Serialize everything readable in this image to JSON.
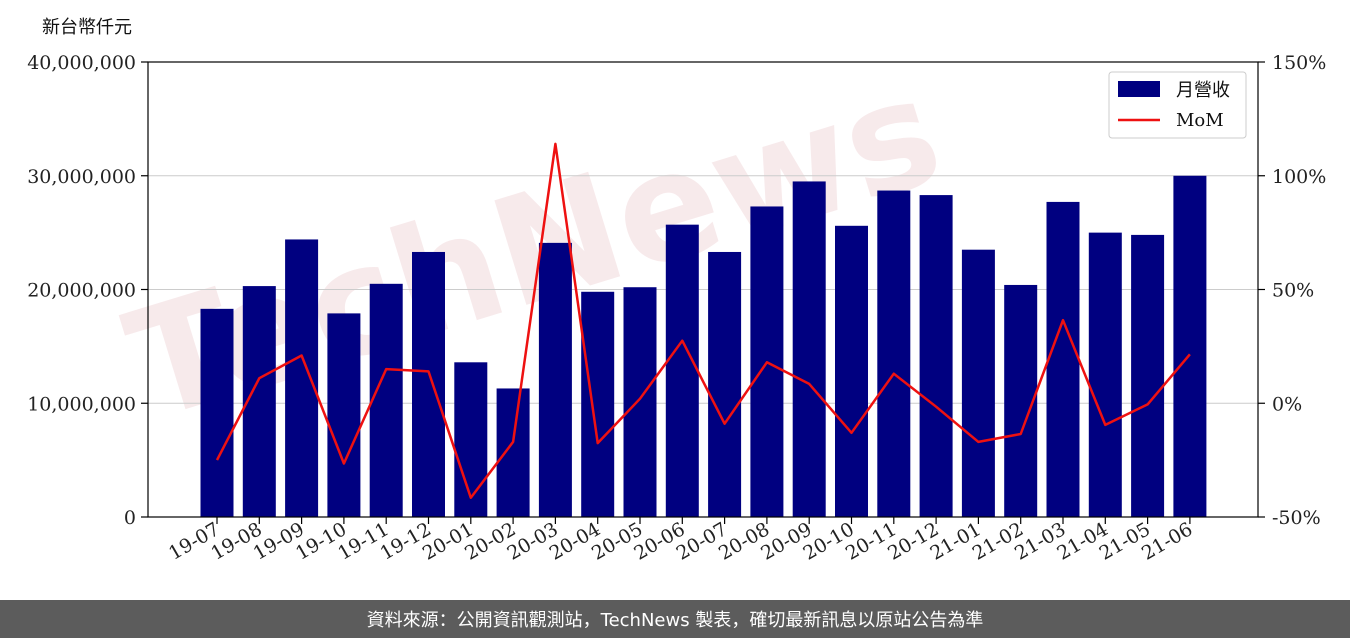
{
  "unit_label": "新台幣仟元",
  "footer_text": "資料來源：公開資訊觀測站，TechNews 製表，確切最新訊息以原站公告為準",
  "colors": {
    "bar": "#000080",
    "line": "#ee1111",
    "grid": "#cccccc",
    "footer_bg": "#5c5c5c"
  },
  "chart_data": {
    "type": "bar",
    "categories": [
      "19-07",
      "19-08",
      "19-09",
      "19-10",
      "19-11",
      "19-12",
      "20-01",
      "20-02",
      "20-03",
      "20-04",
      "20-05",
      "20-06",
      "20-07",
      "20-08",
      "20-09",
      "20-10",
      "20-11",
      "20-12",
      "21-01",
      "21-02",
      "21-03",
      "21-04",
      "21-05",
      "21-06"
    ],
    "series": [
      {
        "name": "月營收",
        "type": "bar",
        "axis": "left",
        "values": [
          18300000,
          20300000,
          24400000,
          17900000,
          20500000,
          23300000,
          13600000,
          11300000,
          24100000,
          19800000,
          20200000,
          25700000,
          23300000,
          27300000,
          29500000,
          25600000,
          28700000,
          28300000,
          23500000,
          20400000,
          27700000,
          25000000,
          24800000,
          30000000
        ]
      },
      {
        "name": "MoM",
        "type": "line",
        "axis": "right",
        "values": [
          -25,
          11,
          21,
          -26.5,
          15,
          14,
          -41.5,
          -17,
          114,
          -17.5,
          2,
          27.5,
          -9,
          18,
          8.5,
          -13,
          13,
          -1.5,
          -17,
          -13.5,
          36.5,
          -9.5,
          -0.5,
          21.5
        ]
      }
    ],
    "left_axis": {
      "ylim": [
        0,
        40000000
      ],
      "ticks": [
        0,
        10000000,
        20000000,
        30000000,
        40000000
      ],
      "tick_labels": [
        "0",
        "10,000,000",
        "20,000,000",
        "30,000,000",
        "40,000,000"
      ]
    },
    "right_axis": {
      "ylim": [
        -50,
        150
      ],
      "ticks": [
        -50,
        0,
        50,
        100,
        150
      ],
      "tick_labels": [
        "-50%",
        "0%",
        "50%",
        "100%",
        "150%"
      ]
    },
    "grid": true,
    "legend_position": "top-right"
  },
  "watermark_text": "TechNews"
}
